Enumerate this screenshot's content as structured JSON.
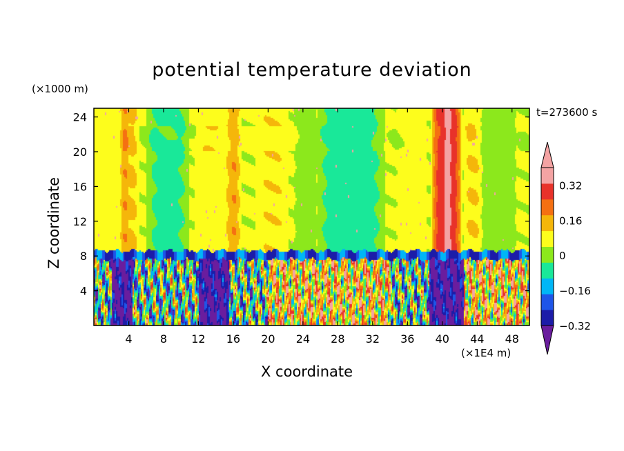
{
  "chart_data": {
    "type": "heatmap",
    "title": "potential temperature deviation",
    "xlabel": "X coordinate",
    "ylabel": "Z coordinate",
    "x_unit_label": "(×1E4 m)",
    "y_unit_label": "(×1000 m)",
    "timestamp": "t=273600 s",
    "xlim": [
      0,
      50
    ],
    "ylim": [
      0,
      25
    ],
    "x_ticks": [
      4,
      8,
      12,
      16,
      20,
      24,
      28,
      32,
      36,
      40,
      44,
      48
    ],
    "x_tick_labels": [
      "4",
      "8",
      "12",
      "16",
      "20",
      "24",
      "28",
      "32",
      "36",
      "40",
      "44",
      "48"
    ],
    "y_ticks": [
      4,
      8,
      12,
      16,
      20,
      24
    ],
    "y_tick_labels": [
      "4",
      "8",
      "12",
      "16",
      "20",
      "24"
    ],
    "colorbar": {
      "levels": [
        -0.4,
        -0.32,
        -0.24,
        -0.16,
        -0.08,
        0,
        0.08,
        0.16,
        0.24,
        0.32,
        0.4
      ],
      "tick_values": [
        -0.32,
        -0.16,
        0,
        0.16,
        0.32
      ],
      "tick_labels": [
        "−0.32",
        "−0.16",
        "0",
        "0.16",
        "0.32"
      ],
      "below_color": "#6a1d9e",
      "above_color": "#f4a3a3",
      "colors": [
        "#1c1ca8",
        "#1e55e8",
        "#00b6f6",
        "#19e899",
        "#8ce81c",
        "#fdfd1c",
        "#f5b60a",
        "#f57012",
        "#e8322a",
        "#f4a3a3"
      ]
    },
    "tropopause_height": 8,
    "upper_columns": [
      {
        "x": 1.5,
        "half_width": 2.5,
        "value": 0.05
      },
      {
        "x": 3.6,
        "half_width": 0.5,
        "value": 0.15
      },
      {
        "x": 4.0,
        "half_width": 1.3,
        "value": 0.09
      },
      {
        "x": 8.5,
        "half_width": 2.5,
        "value": -0.1
      },
      {
        "x": 13.5,
        "half_width": 2.0,
        "value": 0.06
      },
      {
        "x": 16.0,
        "half_width": 1.0,
        "value": 0.1
      },
      {
        "x": 16.1,
        "half_width": 0.5,
        "value": 0.15
      },
      {
        "x": 20.5,
        "half_width": 2.0,
        "value": 0.07
      },
      {
        "x": 25.0,
        "half_width": 2.0,
        "value": -0.04
      },
      {
        "x": 29.5,
        "half_width": 4.0,
        "value": -0.12
      },
      {
        "x": 36.5,
        "half_width": 2.0,
        "value": 0.03
      },
      {
        "x": 40.5,
        "half_width": 1.8,
        "value": 0.28
      },
      {
        "x": 40.6,
        "half_width": 0.7,
        "value": 0.35
      },
      {
        "x": 43.5,
        "half_width": 1.0,
        "value": 0.08
      },
      {
        "x": 46.5,
        "half_width": 2.0,
        "value": -0.05
      }
    ],
    "lower_regions": [
      {
        "x_start": 0,
        "x_end": 2,
        "regime": "mixed"
      },
      {
        "x_start": 2,
        "x_end": 4.5,
        "regime": "cold"
      },
      {
        "x_start": 4.5,
        "x_end": 12,
        "regime": "mixed"
      },
      {
        "x_start": 12,
        "x_end": 15.5,
        "regime": "cold"
      },
      {
        "x_start": 15.5,
        "x_end": 20,
        "regime": "mixed"
      },
      {
        "x_start": 20,
        "x_end": 34,
        "regime": "warm"
      },
      {
        "x_start": 34,
        "x_end": 38.5,
        "regime": "mixed"
      },
      {
        "x_start": 38.5,
        "x_end": 42.5,
        "regime": "cold"
      },
      {
        "x_start": 42.5,
        "x_end": 50,
        "regime": "warm"
      }
    ]
  }
}
